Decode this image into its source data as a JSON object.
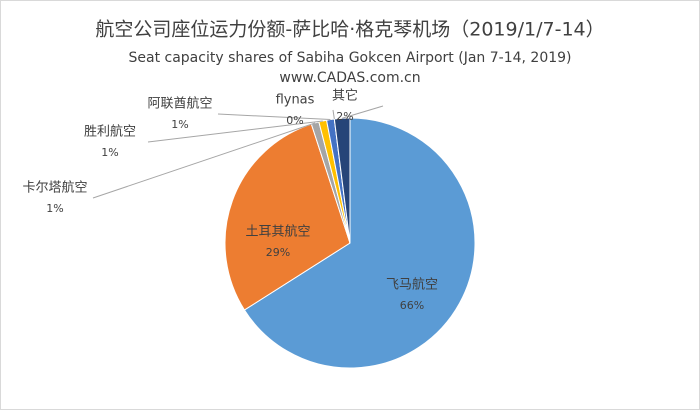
{
  "chart_data": {
    "type": "pie",
    "title": "航空公司座位运力份额-萨比哈·格克琴机场（2019/1/7-14）",
    "subtitle": "Seat capacity shares of Sabiha Gokcen Airport (Jan 7-14, 2019)",
    "source": "www.CADAS.com.cn",
    "categories": [
      "飞马航空",
      "土耳其航空",
      "卡尔塔航空",
      "胜利航空",
      "阿联酋航空",
      "flynas",
      "其它"
    ],
    "values": [
      66,
      29,
      1,
      1,
      1,
      0,
      2
    ],
    "value_labels": [
      "66%",
      "29%",
      "1%",
      "1%",
      "1%",
      "0%",
      "2%"
    ],
    "colors": [
      "#5b9bd5",
      "#ed7d31",
      "#a5a5a5",
      "#ffc000",
      "#4472c4",
      "#70ad47",
      "#264478"
    ]
  }
}
